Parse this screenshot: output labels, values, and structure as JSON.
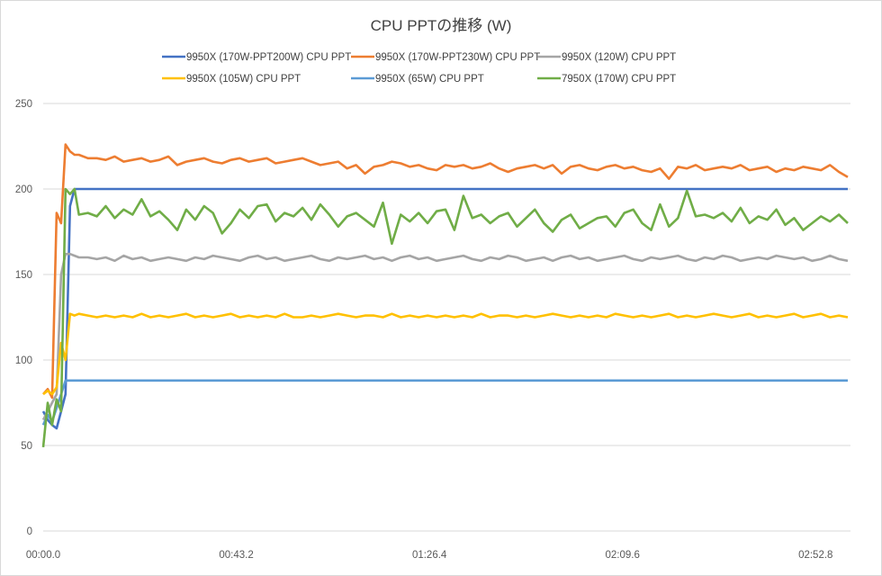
{
  "chart_data": {
    "type": "line",
    "title": "CPU PPTの推移 (W)",
    "xlabel": "",
    "ylabel": "",
    "ylim": [
      0,
      250
    ],
    "xlim_seconds": [
      0,
      180.6
    ],
    "yticks": [
      "0",
      "50",
      "100",
      "150",
      "200",
      "250"
    ],
    "ytick_values": [
      0,
      50,
      100,
      150,
      200,
      250
    ],
    "xticks": [
      "00:00.0",
      "00:43.2",
      "01:26.4",
      "02:09.6",
      "02:52.8"
    ],
    "xtick_values": [
      0,
      43.2,
      86.4,
      129.6,
      172.8
    ],
    "grid": "horizontal",
    "legend_position": "top",
    "x": [
      0,
      1,
      2,
      3,
      4,
      5,
      6,
      7,
      8,
      10,
      12,
      14,
      16,
      18,
      20,
      22,
      24,
      26,
      28,
      30,
      32,
      34,
      36,
      38,
      40,
      42,
      44,
      46,
      48,
      50,
      52,
      54,
      56,
      58,
      60,
      62,
      64,
      66,
      68,
      70,
      72,
      74,
      76,
      78,
      80,
      82,
      84,
      86,
      88,
      90,
      92,
      94,
      96,
      98,
      100,
      102,
      104,
      106,
      108,
      110,
      112,
      114,
      116,
      118,
      120,
      122,
      124,
      126,
      128,
      130,
      132,
      134,
      136,
      138,
      140,
      142,
      144,
      146,
      148,
      150,
      152,
      154,
      156,
      158,
      160,
      162,
      164,
      166,
      168,
      170,
      172,
      174,
      176,
      178,
      180
    ],
    "series": [
      {
        "name": "9950X (170W-PPT200W) CPU PPT",
        "color": "#4472c4",
        "values": [
          70,
          65,
          62,
          60,
          70,
          80,
          190,
          200,
          200,
          200,
          200,
          200,
          200,
          200,
          200,
          200,
          200,
          200,
          200,
          200,
          200,
          200,
          200,
          200,
          200,
          200,
          200,
          200,
          200,
          200,
          200,
          200,
          200,
          200,
          200,
          200,
          200,
          200,
          200,
          200,
          200,
          200,
          200,
          200,
          200,
          200,
          200,
          200,
          200,
          200,
          200,
          200,
          200,
          200,
          200,
          200,
          200,
          200,
          200,
          200,
          200,
          200,
          200,
          200,
          200,
          200,
          200,
          200,
          200,
          200,
          200,
          200,
          200,
          200,
          200,
          200,
          200,
          200,
          200,
          200,
          200,
          200,
          200,
          200,
          200,
          200,
          200,
          200,
          200,
          200,
          200,
          200,
          200,
          200,
          200
        ]
      },
      {
        "name": "9950X (170W-PPT230W) CPU PPT",
        "color": "#ed7d31",
        "values": [
          80,
          83,
          78,
          186,
          180,
          226,
          222,
          220,
          220,
          218,
          218,
          217,
          219,
          216,
          217,
          218,
          216,
          217,
          219,
          214,
          216,
          217,
          218,
          216,
          215,
          217,
          218,
          216,
          217,
          218,
          215,
          216,
          217,
          218,
          216,
          214,
          215,
          216,
          212,
          214,
          209,
          213,
          214,
          216,
          215,
          213,
          214,
          212,
          211,
          214,
          213,
          214,
          212,
          213,
          215,
          212,
          210,
          212,
          213,
          214,
          212,
          214,
          209,
          213,
          214,
          212,
          211,
          213,
          214,
          212,
          213,
          211,
          210,
          212,
          206,
          213,
          212,
          214,
          211,
          212,
          213,
          212,
          214,
          211,
          212,
          213,
          210,
          212,
          211,
          213,
          212,
          211,
          214,
          210,
          207
        ]
      },
      {
        "name": "9950X (120W) CPU PPT",
        "color": "#a5a5a5",
        "values": [
          65,
          70,
          75,
          80,
          150,
          162,
          162,
          161,
          160,
          160,
          159,
          160,
          158,
          161,
          159,
          160,
          158,
          159,
          160,
          159,
          158,
          160,
          159,
          161,
          160,
          159,
          158,
          160,
          161,
          159,
          160,
          158,
          159,
          160,
          161,
          159,
          158,
          160,
          159,
          160,
          161,
          159,
          160,
          158,
          160,
          161,
          159,
          160,
          158,
          159,
          160,
          161,
          159,
          158,
          160,
          159,
          161,
          160,
          158,
          159,
          160,
          158,
          160,
          161,
          159,
          160,
          158,
          159,
          160,
          161,
          159,
          158,
          160,
          159,
          160,
          161,
          159,
          158,
          160,
          159,
          161,
          160,
          158,
          159,
          160,
          159,
          161,
          160,
          159,
          160,
          158,
          159,
          161,
          159,
          158
        ]
      },
      {
        "name": "9950X (105W) CPU PPT",
        "color": "#ffc000",
        "values": [
          80,
          82,
          80,
          84,
          110,
          100,
          127,
          126,
          127,
          126,
          125,
          126,
          125,
          126,
          125,
          127,
          125,
          126,
          125,
          126,
          127,
          125,
          126,
          125,
          126,
          127,
          125,
          126,
          125,
          126,
          125,
          127,
          125,
          125,
          126,
          125,
          126,
          127,
          126,
          125,
          126,
          126,
          125,
          127,
          125,
          126,
          125,
          126,
          125,
          126,
          125,
          126,
          125,
          127,
          125,
          126,
          126,
          125,
          126,
          125,
          126,
          127,
          126,
          125,
          126,
          125,
          126,
          125,
          127,
          126,
          125,
          126,
          125,
          126,
          127,
          125,
          126,
          125,
          126,
          127,
          126,
          125,
          126,
          127,
          125,
          126,
          125,
          126,
          127,
          125,
          126,
          127,
          125,
          126,
          125
        ]
      },
      {
        "name": "9950X (65W) CPU PPT",
        "color": "#5b9bd5",
        "values": [
          62,
          68,
          64,
          72,
          80,
          88,
          88,
          88,
          88,
          88,
          88,
          88,
          88,
          88,
          88,
          88,
          88,
          88,
          88,
          88,
          88,
          88,
          88,
          88,
          88,
          88,
          88,
          88,
          88,
          88,
          88,
          88,
          88,
          88,
          88,
          88,
          88,
          88,
          88,
          88,
          88,
          88,
          88,
          88,
          88,
          88,
          88,
          88,
          88,
          88,
          88,
          88,
          88,
          88,
          88,
          88,
          88,
          88,
          88,
          88,
          88,
          88,
          88,
          88,
          88,
          88,
          88,
          88,
          88,
          88,
          88,
          88,
          88,
          88,
          88,
          88,
          88,
          88,
          88,
          88,
          88,
          88,
          88,
          88,
          88,
          88,
          88,
          88,
          88,
          88,
          88,
          88,
          88,
          88,
          88
        ]
      },
      {
        "name": "7950X (170W) CPU PPT",
        "color": "#70ad47",
        "values": [
          49,
          75,
          62,
          77,
          70,
          200,
          197,
          200,
          185,
          186,
          184,
          190,
          183,
          188,
          185,
          194,
          184,
          187,
          182,
          176,
          188,
          182,
          190,
          186,
          174,
          180,
          188,
          183,
          190,
          191,
          181,
          186,
          184,
          189,
          182,
          191,
          185,
          178,
          184,
          186,
          182,
          178,
          192,
          168,
          185,
          181,
          186,
          180,
          187,
          188,
          176,
          196,
          183,
          185,
          180,
          184,
          186,
          178,
          183,
          188,
          180,
          175,
          182,
          185,
          177,
          180,
          183,
          184,
          178,
          186,
          188,
          180,
          176,
          191,
          178,
          183,
          199,
          184,
          185,
          183,
          186,
          181,
          189,
          180,
          184,
          182,
          188,
          179,
          183,
          176,
          180,
          184,
          181,
          185,
          180
        ]
      }
    ]
  }
}
